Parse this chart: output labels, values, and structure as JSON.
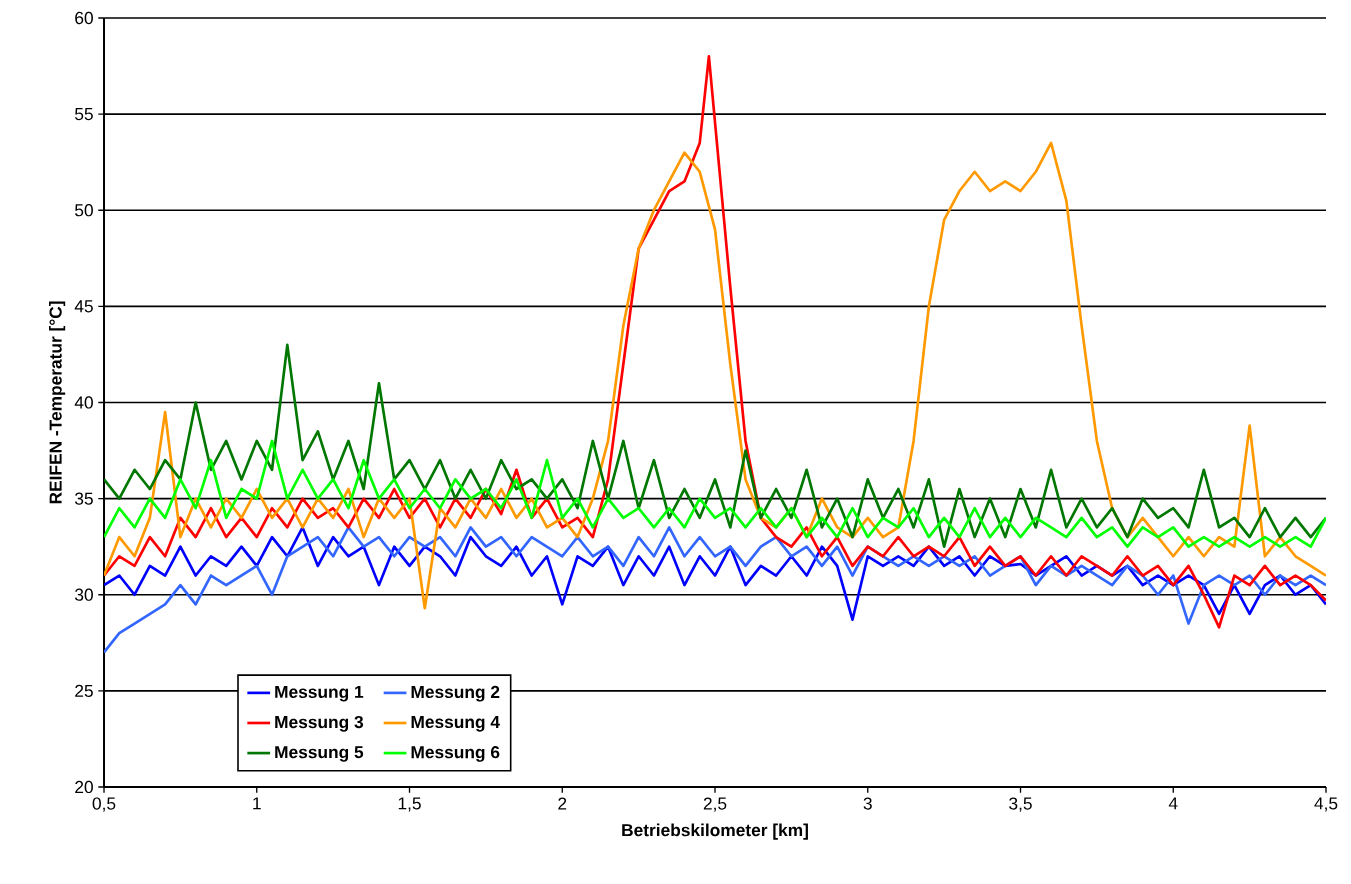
{
  "chart_data": {
    "type": "line",
    "xlabel": "Betriebskilometer [km]",
    "ylabel": "REIFEN -Temperatur [°C]",
    "xlim": [
      0.5,
      4.5
    ],
    "ylim": [
      20,
      60
    ],
    "xticks": [
      {
        "value": 0.5,
        "label": "0,5"
      },
      1,
      {
        "value": 1.5,
        "label": "1,5"
      },
      2,
      {
        "value": 2.5,
        "label": "2,5"
      },
      3,
      {
        "value": 3.5,
        "label": "3,5"
      },
      4,
      {
        "value": 4.5,
        "label": "4,5"
      }
    ],
    "yticks": [
      20,
      25,
      30,
      35,
      40,
      45,
      50,
      55,
      60
    ],
    "grid": "y",
    "legend": "bottom left",
    "marker": "none",
    "line_style": "solid",
    "x": [
      0.5,
      0.55,
      0.6,
      0.65,
      0.7,
      0.75,
      0.8,
      0.85,
      0.9,
      0.95,
      1.0,
      1.05,
      1.1,
      1.15,
      1.2,
      1.25,
      1.3,
      1.35,
      1.4,
      1.45,
      1.5,
      1.55,
      1.6,
      1.65,
      1.7,
      1.75,
      1.8,
      1.85,
      1.9,
      1.95,
      2.0,
      2.05,
      2.1,
      2.15,
      2.2,
      2.25,
      2.3,
      2.35,
      2.4,
      2.45,
      2.5,
      2.55,
      2.6,
      2.65,
      2.7,
      2.75,
      2.8,
      2.85,
      2.9,
      2.95,
      3.0,
      3.05,
      3.1,
      3.15,
      3.2,
      3.25,
      3.3,
      3.35,
      3.4,
      3.45,
      3.5,
      3.55,
      3.6,
      3.65,
      3.7,
      3.75,
      3.8,
      3.85,
      3.9,
      3.95,
      4.0,
      4.05,
      4.1,
      4.15,
      4.2,
      4.25,
      4.3,
      4.35,
      4.4,
      4.45,
      4.5
    ],
    "series": [
      {
        "name": "Messung 1",
        "color": "#0000ff",
        "values": [
          30.5,
          31,
          30,
          31.5,
          31,
          32.5,
          31,
          32,
          31.5,
          32.5,
          31.5,
          33,
          32,
          33.5,
          31.5,
          33,
          32,
          32.5,
          30.5,
          32.5,
          31.5,
          32.5,
          32,
          31,
          33,
          32,
          31.5,
          32.5,
          31,
          32,
          29.5,
          32,
          31.5,
          32.5,
          30.5,
          32,
          31,
          32.5,
          30.5,
          32,
          31,
          32.5,
          30.5,
          31.5,
          31,
          32,
          31,
          32.5,
          31.5,
          28.7,
          32,
          31.5,
          32,
          31.5,
          32.5,
          31.5,
          32,
          31,
          32,
          31.5,
          31.6,
          31,
          31.5,
          32,
          31,
          31.5,
          31,
          31.5,
          30.5,
          31,
          30.5,
          31,
          30.5,
          29,
          30.5,
          29,
          30.5,
          31,
          30,
          30.5,
          29.5
        ]
      },
      {
        "name": "Messung 2",
        "color": "#3366ff",
        "values": [
          27,
          28,
          28.5,
          29,
          29.5,
          30.5,
          29.5,
          31,
          30.5,
          31,
          31.5,
          30,
          32,
          32.5,
          33,
          32,
          33.5,
          32.5,
          33,
          32,
          33,
          32.5,
          33,
          32,
          33.5,
          32.5,
          33,
          32,
          33,
          32.5,
          32,
          33,
          32,
          32.5,
          31.5,
          33,
          32,
          33.5,
          32,
          33,
          32,
          32.5,
          31.5,
          32.5,
          33,
          32,
          32.5,
          31.5,
          32.5,
          31,
          32.5,
          32,
          31.5,
          32,
          31.5,
          32,
          31.5,
          32,
          31,
          31.5,
          32,
          30.5,
          31.5,
          31,
          31.5,
          31,
          30.5,
          31.5,
          31,
          30,
          31,
          28.5,
          30.5,
          31,
          30.5,
          31,
          30,
          31,
          30.5,
          31,
          30.5
        ]
      },
      {
        "name": "Messung 3",
        "color": "#ff0000",
        "x": [
          0.5,
          0.55,
          0.6,
          0.65,
          0.7,
          0.75,
          0.8,
          0.85,
          0.9,
          0.95,
          1.0,
          1.05,
          1.1,
          1.15,
          1.2,
          1.25,
          1.3,
          1.35,
          1.4,
          1.45,
          1.5,
          1.55,
          1.6,
          1.65,
          1.7,
          1.75,
          1.8,
          1.85,
          1.9,
          1.95,
          2.0,
          2.05,
          2.1,
          2.15,
          2.2,
          2.25,
          2.3,
          2.35,
          2.4,
          2.45,
          2.48,
          2.55,
          2.6,
          2.65,
          2.7,
          2.75,
          2.8,
          2.85,
          2.9,
          2.95,
          3.0,
          3.05,
          3.1,
          3.15,
          3.2,
          3.25,
          3.3,
          3.35,
          3.4,
          3.45,
          3.5,
          3.55,
          3.6,
          3.65,
          3.7,
          3.75,
          3.8,
          3.85,
          3.9,
          3.95,
          4.0,
          4.05,
          4.1,
          4.15,
          4.2,
          4.25,
          4.3,
          4.35,
          4.4,
          4.45,
          4.5
        ],
        "values": [
          31,
          32,
          31.5,
          33,
          32,
          34,
          33,
          34.5,
          33,
          34,
          33,
          34.5,
          33.5,
          35,
          34,
          34.5,
          33.5,
          35,
          34,
          35.5,
          34,
          35,
          33.5,
          35,
          34,
          35.5,
          34.2,
          36.5,
          34,
          35,
          33.5,
          34,
          33,
          36,
          42,
          48,
          49.5,
          51,
          51.5,
          53.5,
          58,
          46,
          38,
          34,
          33,
          32.5,
          33.5,
          32,
          33,
          31.5,
          32.5,
          32,
          33,
          32,
          32.5,
          32,
          33,
          31.5,
          32.5,
          31.5,
          32,
          31,
          32,
          31,
          32,
          31.5,
          31,
          32,
          31,
          31.5,
          30.5,
          31.5,
          30,
          28.3,
          31,
          30.5,
          31.5,
          30.5,
          31,
          30.5,
          29.7
        ]
      },
      {
        "name": "Messung 4",
        "color": "#ff9900",
        "values": [
          31,
          33,
          32,
          34,
          39.5,
          33,
          35,
          33.5,
          35,
          34,
          35.5,
          34,
          35,
          33.5,
          35,
          34,
          35.5,
          33,
          35,
          34,
          35,
          29.3,
          34.5,
          33.5,
          35,
          34,
          35.5,
          34,
          35,
          33.5,
          34,
          33,
          35,
          38,
          44,
          48,
          50,
          51.5,
          53,
          52,
          49,
          42,
          36,
          34,
          33.5,
          34.5,
          33,
          35,
          33.5,
          33,
          34,
          33,
          33.5,
          38,
          45,
          49.5,
          51,
          52,
          51,
          51.5,
          51,
          52,
          53.5,
          50.5,
          44,
          38,
          34.5,
          33,
          34,
          33,
          32,
          33,
          32,
          33,
          32.5,
          38.8,
          32,
          33,
          32,
          31.5,
          31
        ]
      },
      {
        "name": "Messung 5",
        "color": "#007700",
        "values": [
          36,
          35,
          36.5,
          35.5,
          37,
          36,
          40,
          36.5,
          38,
          36,
          38,
          36.5,
          43,
          37,
          38.5,
          36,
          38,
          35.5,
          41,
          36,
          37,
          35.5,
          37,
          35,
          36.5,
          35,
          37,
          35.5,
          36,
          35,
          36,
          34.5,
          38,
          35,
          38,
          34.5,
          37,
          34,
          35.5,
          34,
          36,
          33.5,
          37.5,
          34,
          35.5,
          34,
          36.5,
          33.5,
          35,
          33,
          36,
          34,
          35.5,
          33.5,
          36,
          32.5,
          35.5,
          33,
          35,
          33,
          35.5,
          33.5,
          36.5,
          33.5,
          35,
          33.5,
          34.5,
          33,
          35,
          34,
          34.5,
          33.5,
          36.5,
          33.5,
          34,
          33,
          34.5,
          33,
          34,
          33,
          34
        ]
      },
      {
        "name": "Messung 6",
        "color": "#00ff00",
        "values": [
          33,
          34.5,
          33.5,
          35,
          34,
          36,
          34.5,
          37,
          34,
          35.5,
          35,
          38,
          35,
          36.5,
          35,
          36,
          34.5,
          37,
          35,
          36,
          34.5,
          35.5,
          34.5,
          36,
          35,
          35.5,
          34.5,
          36,
          34,
          37,
          34,
          35,
          33.5,
          35,
          34,
          34.5,
          33.5,
          34.5,
          33.5,
          35,
          34,
          34.5,
          33.5,
          34.5,
          33.5,
          34.5,
          33,
          34,
          33,
          34.5,
          33,
          34,
          33.5,
          34.5,
          33,
          34,
          33,
          34.5,
          33,
          34,
          33,
          34,
          33.5,
          33,
          34,
          33,
          33.5,
          32.5,
          33.5,
          33,
          33.5,
          32.5,
          33,
          32.5,
          33,
          32.5,
          33,
          32.5,
          33,
          32.5,
          34
        ]
      }
    ]
  }
}
